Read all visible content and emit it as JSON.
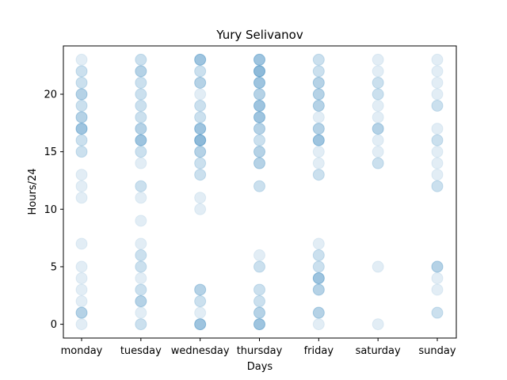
{
  "chart_data": {
    "type": "scatter",
    "title": "Yury Selivanov",
    "xlabel": "Days",
    "ylabel": "Hours/24",
    "categories": [
      "monday",
      "tuesday",
      "wednesday",
      "thursday",
      "friday",
      "saturday",
      "sunday"
    ],
    "yticks": [
      0,
      5,
      10,
      15,
      20
    ],
    "ylim": [
      -1.2,
      24.2
    ],
    "grid": false,
    "marker_color": "#1f77b4",
    "points": [
      {
        "day": "monday",
        "hour": 0,
        "count": 1
      },
      {
        "day": "monday",
        "hour": 1,
        "count": 3
      },
      {
        "day": "monday",
        "hour": 2,
        "count": 1
      },
      {
        "day": "monday",
        "hour": 3,
        "count": 1
      },
      {
        "day": "monday",
        "hour": 4,
        "count": 1
      },
      {
        "day": "monday",
        "hour": 5,
        "count": 1
      },
      {
        "day": "monday",
        "hour": 7,
        "count": 1
      },
      {
        "day": "monday",
        "hour": 11,
        "count": 1
      },
      {
        "day": "monday",
        "hour": 12,
        "count": 1
      },
      {
        "day": "monday",
        "hour": 13,
        "count": 1
      },
      {
        "day": "monday",
        "hour": 15,
        "count": 2
      },
      {
        "day": "monday",
        "hour": 16,
        "count": 2
      },
      {
        "day": "monday",
        "hour": 17,
        "count": 4
      },
      {
        "day": "monday",
        "hour": 18,
        "count": 3
      },
      {
        "day": "monday",
        "hour": 19,
        "count": 2
      },
      {
        "day": "monday",
        "hour": 20,
        "count": 3
      },
      {
        "day": "monday",
        "hour": 21,
        "count": 2
      },
      {
        "day": "monday",
        "hour": 22,
        "count": 2
      },
      {
        "day": "monday",
        "hour": 23,
        "count": 1
      },
      {
        "day": "tuesday",
        "hour": 0,
        "count": 2
      },
      {
        "day": "tuesday",
        "hour": 1,
        "count": 1
      },
      {
        "day": "tuesday",
        "hour": 2,
        "count": 3
      },
      {
        "day": "tuesday",
        "hour": 3,
        "count": 2
      },
      {
        "day": "tuesday",
        "hour": 4,
        "count": 1
      },
      {
        "day": "tuesday",
        "hour": 5,
        "count": 2
      },
      {
        "day": "tuesday",
        "hour": 6,
        "count": 2
      },
      {
        "day": "tuesday",
        "hour": 7,
        "count": 1
      },
      {
        "day": "tuesday",
        "hour": 9,
        "count": 1
      },
      {
        "day": "tuesday",
        "hour": 11,
        "count": 1
      },
      {
        "day": "tuesday",
        "hour": 12,
        "count": 2
      },
      {
        "day": "tuesday",
        "hour": 14,
        "count": 1
      },
      {
        "day": "tuesday",
        "hour": 15,
        "count": 2
      },
      {
        "day": "tuesday",
        "hour": 16,
        "count": 4
      },
      {
        "day": "tuesday",
        "hour": 17,
        "count": 3
      },
      {
        "day": "tuesday",
        "hour": 18,
        "count": 2
      },
      {
        "day": "tuesday",
        "hour": 19,
        "count": 2
      },
      {
        "day": "tuesday",
        "hour": 20,
        "count": 2
      },
      {
        "day": "tuesday",
        "hour": 21,
        "count": 2
      },
      {
        "day": "tuesday",
        "hour": 22,
        "count": 3
      },
      {
        "day": "tuesday",
        "hour": 23,
        "count": 2
      },
      {
        "day": "wednesday",
        "hour": 0,
        "count": 4
      },
      {
        "day": "wednesday",
        "hour": 1,
        "count": 1
      },
      {
        "day": "wednesday",
        "hour": 2,
        "count": 2
      },
      {
        "day": "wednesday",
        "hour": 3,
        "count": 3
      },
      {
        "day": "wednesday",
        "hour": 10,
        "count": 1
      },
      {
        "day": "wednesday",
        "hour": 11,
        "count": 1
      },
      {
        "day": "wednesday",
        "hour": 13,
        "count": 2
      },
      {
        "day": "wednesday",
        "hour": 14,
        "count": 2
      },
      {
        "day": "wednesday",
        "hour": 15,
        "count": 3
      },
      {
        "day": "wednesday",
        "hour": 16,
        "count": 5
      },
      {
        "day": "wednesday",
        "hour": 17,
        "count": 4
      },
      {
        "day": "wednesday",
        "hour": 18,
        "count": 2
      },
      {
        "day": "wednesday",
        "hour": 19,
        "count": 2
      },
      {
        "day": "wednesday",
        "hour": 20,
        "count": 1
      },
      {
        "day": "wednesday",
        "hour": 21,
        "count": 3
      },
      {
        "day": "wednesday",
        "hour": 22,
        "count": 2
      },
      {
        "day": "wednesday",
        "hour": 23,
        "count": 4
      },
      {
        "day": "thursday",
        "hour": 0,
        "count": 4
      },
      {
        "day": "thursday",
        "hour": 1,
        "count": 3
      },
      {
        "day": "thursday",
        "hour": 2,
        "count": 2
      },
      {
        "day": "thursday",
        "hour": 3,
        "count": 2
      },
      {
        "day": "thursday",
        "hour": 5,
        "count": 2
      },
      {
        "day": "thursday",
        "hour": 6,
        "count": 1
      },
      {
        "day": "thursday",
        "hour": 12,
        "count": 2
      },
      {
        "day": "thursday",
        "hour": 14,
        "count": 3
      },
      {
        "day": "thursday",
        "hour": 15,
        "count": 3
      },
      {
        "day": "thursday",
        "hour": 16,
        "count": 2
      },
      {
        "day": "thursday",
        "hour": 17,
        "count": 3
      },
      {
        "day": "thursday",
        "hour": 18,
        "count": 4
      },
      {
        "day": "thursday",
        "hour": 19,
        "count": 4
      },
      {
        "day": "thursday",
        "hour": 20,
        "count": 3
      },
      {
        "day": "thursday",
        "hour": 21,
        "count": 4
      },
      {
        "day": "thursday",
        "hour": 22,
        "count": 5
      },
      {
        "day": "thursday",
        "hour": 23,
        "count": 4
      },
      {
        "day": "friday",
        "hour": 0,
        "count": 1
      },
      {
        "day": "friday",
        "hour": 1,
        "count": 3
      },
      {
        "day": "friday",
        "hour": 3,
        "count": 3
      },
      {
        "day": "friday",
        "hour": 4,
        "count": 4
      },
      {
        "day": "friday",
        "hour": 5,
        "count": 2
      },
      {
        "day": "friday",
        "hour": 6,
        "count": 2
      },
      {
        "day": "friday",
        "hour": 7,
        "count": 1
      },
      {
        "day": "friday",
        "hour": 13,
        "count": 2
      },
      {
        "day": "friday",
        "hour": 14,
        "count": 1
      },
      {
        "day": "friday",
        "hour": 15,
        "count": 1
      },
      {
        "day": "friday",
        "hour": 16,
        "count": 4
      },
      {
        "day": "friday",
        "hour": 17,
        "count": 3
      },
      {
        "day": "friday",
        "hour": 18,
        "count": 1
      },
      {
        "day": "friday",
        "hour": 19,
        "count": 3
      },
      {
        "day": "friday",
        "hour": 20,
        "count": 3
      },
      {
        "day": "friday",
        "hour": 21,
        "count": 3
      },
      {
        "day": "friday",
        "hour": 22,
        "count": 2
      },
      {
        "day": "friday",
        "hour": 23,
        "count": 2
      },
      {
        "day": "saturday",
        "hour": 0,
        "count": 1
      },
      {
        "day": "saturday",
        "hour": 5,
        "count": 1
      },
      {
        "day": "saturday",
        "hour": 14,
        "count": 2
      },
      {
        "day": "saturday",
        "hour": 15,
        "count": 1
      },
      {
        "day": "saturday",
        "hour": 16,
        "count": 1
      },
      {
        "day": "saturday",
        "hour": 17,
        "count": 3
      },
      {
        "day": "saturday",
        "hour": 18,
        "count": 1
      },
      {
        "day": "saturday",
        "hour": 19,
        "count": 1
      },
      {
        "day": "saturday",
        "hour": 20,
        "count": 2
      },
      {
        "day": "saturday",
        "hour": 21,
        "count": 2
      },
      {
        "day": "saturday",
        "hour": 22,
        "count": 1
      },
      {
        "day": "saturday",
        "hour": 23,
        "count": 1
      },
      {
        "day": "sunday",
        "hour": 1,
        "count": 2
      },
      {
        "day": "sunday",
        "hour": 3,
        "count": 1
      },
      {
        "day": "sunday",
        "hour": 4,
        "count": 1
      },
      {
        "day": "sunday",
        "hour": 5,
        "count": 3
      },
      {
        "day": "sunday",
        "hour": 12,
        "count": 2
      },
      {
        "day": "sunday",
        "hour": 13,
        "count": 1
      },
      {
        "day": "sunday",
        "hour": 14,
        "count": 1
      },
      {
        "day": "sunday",
        "hour": 15,
        "count": 1
      },
      {
        "day": "sunday",
        "hour": 16,
        "count": 2
      },
      {
        "day": "sunday",
        "hour": 17,
        "count": 1
      },
      {
        "day": "sunday",
        "hour": 19,
        "count": 2
      },
      {
        "day": "sunday",
        "hour": 20,
        "count": 1
      },
      {
        "day": "sunday",
        "hour": 21,
        "count": 1
      },
      {
        "day": "sunday",
        "hour": 22,
        "count": 1
      },
      {
        "day": "sunday",
        "hour": 23,
        "count": 1
      }
    ]
  }
}
